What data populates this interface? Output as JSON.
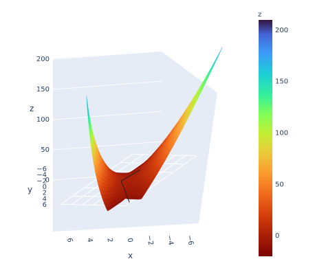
{
  "chart_data": {
    "type": "surface",
    "xlabel": "x",
    "ylabel": "y",
    "zlabel": "z",
    "x_ticks": [
      "−6",
      "−4",
      "−2",
      "0",
      "2",
      "4",
      "6"
    ],
    "y_ticks": [
      "−6",
      "−4",
      "−2",
      "0",
      "2",
      "4",
      "6"
    ],
    "z_ticks": [
      "0",
      "50",
      "100",
      "150",
      "200"
    ],
    "xlim": [
      -6,
      6
    ],
    "ylim": [
      -6,
      6
    ],
    "zlim": [
      0,
      210
    ],
    "surface_formula": "z = x^2 + y^2 + 3*x*y",
    "colorscale": "turbo_reversed",
    "colorbar": {
      "title": "z",
      "ticks": [
        "0",
        "50",
        "100",
        "150",
        "200"
      ],
      "range": [
        -20,
        210
      ]
    },
    "path_points": [
      [
        0.2,
        -2.0
      ],
      [
        0.8,
        0.6
      ],
      [
        -2.0,
        2.2
      ],
      [
        -4.2,
        3.3
      ]
    ],
    "grid": true
  }
}
